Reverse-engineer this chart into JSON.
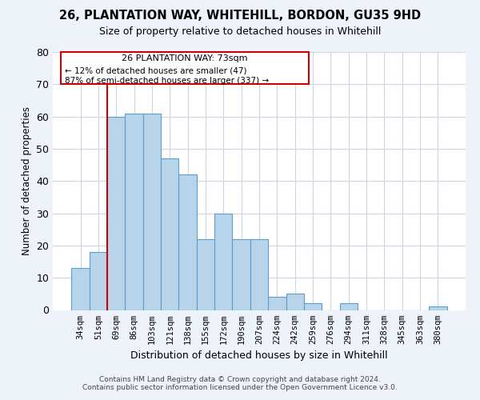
{
  "title": "26, PLANTATION WAY, WHITEHILL, BORDON, GU35 9HD",
  "subtitle": "Size of property relative to detached houses in Whitehill",
  "xlabel": "Distribution of detached houses by size in Whitehill",
  "ylabel": "Number of detached properties",
  "bar_labels": [
    "34sqm",
    "51sqm",
    "69sqm",
    "86sqm",
    "103sqm",
    "121sqm",
    "138sqm",
    "155sqm",
    "172sqm",
    "190sqm",
    "207sqm",
    "224sqm",
    "242sqm",
    "259sqm",
    "276sqm",
    "294sqm",
    "311sqm",
    "328sqm",
    "345sqm",
    "363sqm",
    "380sqm"
  ],
  "bar_heights": [
    13,
    18,
    60,
    61,
    61,
    47,
    42,
    22,
    30,
    22,
    22,
    4,
    5,
    2,
    0,
    2,
    0,
    0,
    0,
    0,
    1
  ],
  "bar_color": "#b8d4eb",
  "bar_edge_color": "#5a9fc9",
  "ylim": [
    0,
    80
  ],
  "yticks": [
    0,
    10,
    20,
    30,
    40,
    50,
    60,
    70,
    80
  ],
  "vline_color": "#cc0000",
  "annotation_title": "26 PLANTATION WAY: 73sqm",
  "annotation_line1": "← 12% of detached houses are smaller (47)",
  "annotation_line2": "87% of semi-detached houses are larger (337) →",
  "footer1": "Contains HM Land Registry data © Crown copyright and database right 2024.",
  "footer2": "Contains public sector information licensed under the Open Government Licence v3.0.",
  "bg_color": "#eef2f9",
  "plot_bg_color": "#ffffff",
  "grid_color": "#ccd5e8"
}
